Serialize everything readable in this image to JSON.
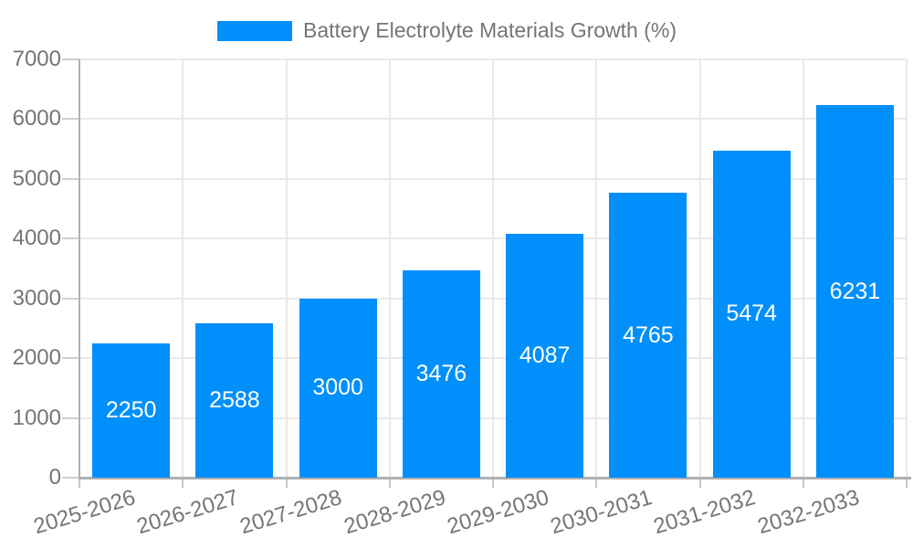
{
  "legend": {
    "label": "Battery Electrolyte Materials Growth (%)"
  },
  "colors": {
    "bar": "#008FFB",
    "axis_line": "#b0b0b0",
    "gridline": "#e9e9e9",
    "y_tick": "#d0d0d0",
    "x_tick": "#c6c6c6",
    "axis_label": "#757575",
    "legend_text": "#757575",
    "value_label": "#ffffff",
    "background": "#ffffff"
  },
  "chart_data": {
    "type": "bar",
    "title": "Battery Electrolyte Materials Growth (%)",
    "categories": [
      "2025-2026",
      "2026-2027",
      "2027-2028",
      "2028-2029",
      "2029-2030",
      "2030-2031",
      "2031-2032",
      "2032-2033"
    ],
    "values": [
      2250,
      2588,
      3000,
      3476,
      4087,
      4765,
      5474,
      6231
    ],
    "series": [
      {
        "name": "Battery Electrolyte Materials Growth (%)",
        "values": [
          2250,
          2588,
          3000,
          3476,
          4087,
          4765,
          5474,
          6231
        ]
      }
    ],
    "xlabel": "",
    "ylabel": "",
    "ylim": [
      0,
      7000
    ],
    "yticks": [
      0,
      1000,
      2000,
      3000,
      4000,
      5000,
      6000,
      7000
    ],
    "grid": true,
    "legend_position": "top",
    "value_labels_position": "inside-middle",
    "x_label_rotation_deg": -17
  }
}
